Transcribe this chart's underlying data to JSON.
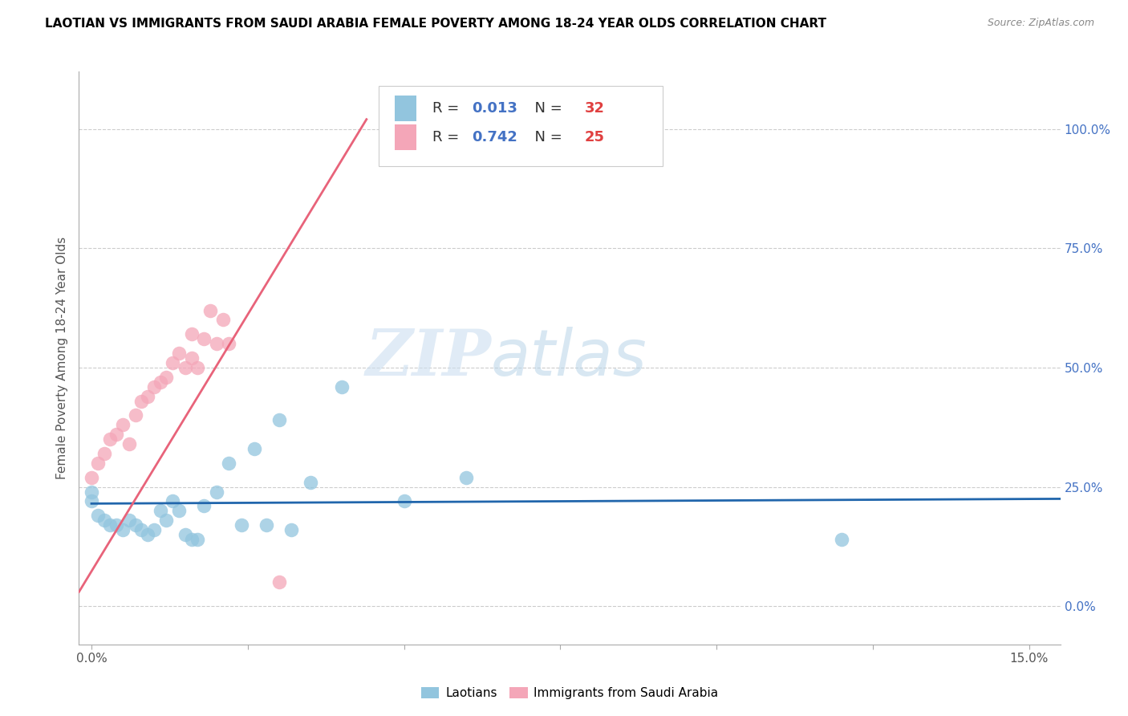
{
  "title": "LAOTIAN VS IMMIGRANTS FROM SAUDI ARABIA FEMALE POVERTY AMONG 18-24 YEAR OLDS CORRELATION CHART",
  "source": "Source: ZipAtlas.com",
  "ylabel": "Female Poverty Among 18-24 Year Olds",
  "xlim": [
    -0.002,
    0.155
  ],
  "ylim": [
    -0.08,
    1.12
  ],
  "xticks": [
    0.0,
    0.05,
    0.1,
    0.15
  ],
  "xticklabels": [
    "0.0%",
    "",
    "",
    "15.0%"
  ],
  "yticks_right": [
    0.0,
    0.25,
    0.5,
    0.75,
    1.0
  ],
  "yticklabels_right": [
    "0.0%",
    "25.0%",
    "50.0%",
    "75.0%",
    "100.0%"
  ],
  "blue_color": "#92c5de",
  "pink_color": "#f4a6b8",
  "blue_line_color": "#2166ac",
  "pink_line_color": "#e8637a",
  "grid_color": "#cccccc",
  "watermark_zip": "ZIP",
  "watermark_atlas": "atlas",
  "legend_label1": "Laotians",
  "legend_label2": "Immigrants from Saudi Arabia",
  "R1": "0.013",
  "N1": "32",
  "R2": "0.742",
  "N2": "25",
  "blue_scatter_x": [
    0.0,
    0.0,
    0.001,
    0.002,
    0.003,
    0.004,
    0.005,
    0.006,
    0.007,
    0.008,
    0.009,
    0.01,
    0.011,
    0.012,
    0.013,
    0.014,
    0.015,
    0.016,
    0.017,
    0.018,
    0.02,
    0.022,
    0.024,
    0.026,
    0.028,
    0.03,
    0.032,
    0.035,
    0.04,
    0.05,
    0.06,
    0.12
  ],
  "blue_scatter_y": [
    0.22,
    0.24,
    0.19,
    0.18,
    0.17,
    0.17,
    0.16,
    0.18,
    0.17,
    0.16,
    0.15,
    0.16,
    0.2,
    0.18,
    0.22,
    0.2,
    0.15,
    0.14,
    0.14,
    0.21,
    0.24,
    0.3,
    0.17,
    0.33,
    0.17,
    0.39,
    0.16,
    0.26,
    0.46,
    0.22,
    0.27,
    0.14
  ],
  "pink_scatter_x": [
    0.0,
    0.001,
    0.002,
    0.003,
    0.004,
    0.005,
    0.006,
    0.007,
    0.008,
    0.009,
    0.01,
    0.011,
    0.012,
    0.013,
    0.014,
    0.015,
    0.016,
    0.017,
    0.018,
    0.019,
    0.02,
    0.021,
    0.022,
    0.03,
    0.016
  ],
  "pink_scatter_y": [
    0.27,
    0.3,
    0.32,
    0.35,
    0.36,
    0.38,
    0.34,
    0.4,
    0.43,
    0.44,
    0.46,
    0.47,
    0.48,
    0.51,
    0.53,
    0.5,
    0.52,
    0.5,
    0.56,
    0.62,
    0.55,
    0.6,
    0.55,
    0.05,
    0.57
  ],
  "blue_trend_x": [
    0.0,
    0.155
  ],
  "blue_trend_y": [
    0.215,
    0.225
  ],
  "pink_trend_x": [
    -0.002,
    0.044
  ],
  "pink_trend_y": [
    0.03,
    1.02
  ]
}
